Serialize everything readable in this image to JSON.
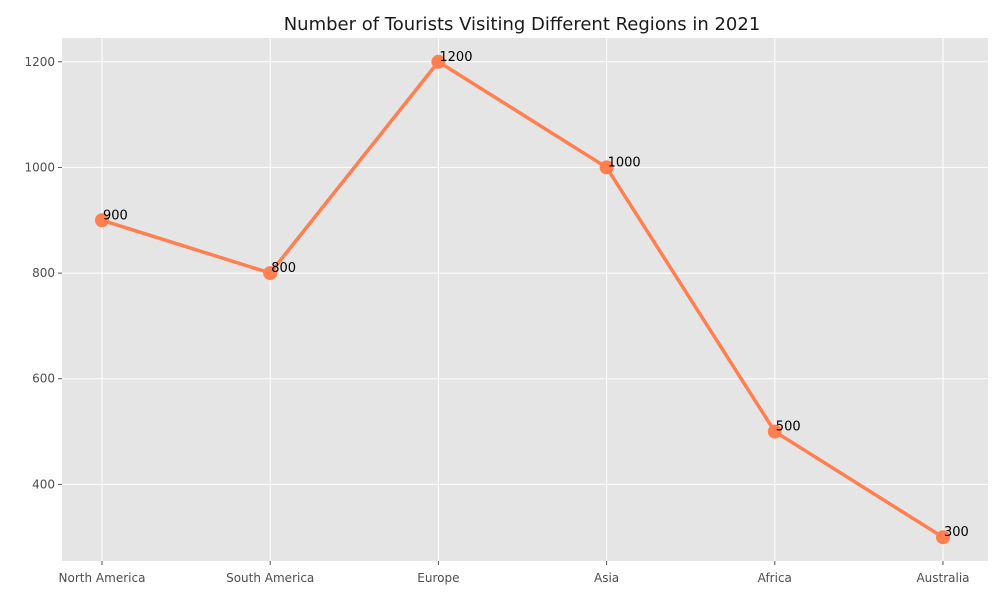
{
  "chart_data": {
    "type": "line",
    "title": "Number of Tourists Visiting Different Regions in 2021",
    "xlabel": "",
    "ylabel": "",
    "categories": [
      "North America",
      "South America",
      "Europe",
      "Asia",
      "Africa",
      "Australia"
    ],
    "series": [
      {
        "values": [
          900,
          800,
          1200,
          1000,
          500,
          300
        ],
        "color": "#ff7f50"
      }
    ],
    "data_labels": [
      "900",
      "800",
      "1200",
      "1000",
      "500",
      "300"
    ],
    "yticks": [
      400,
      600,
      800,
      1000,
      1200
    ],
    "ylim": [
      255,
      1245
    ],
    "grid": true,
    "legend": "none"
  }
}
